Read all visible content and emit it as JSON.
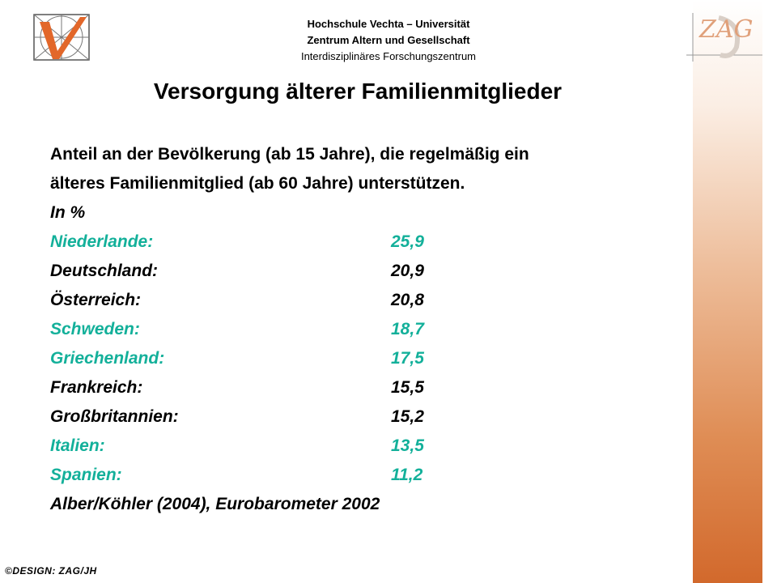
{
  "header": {
    "line1": "Hochschule Vechta – Universität",
    "line2": "Zentrum Altern und Gesellschaft",
    "line3": "Interdisziplinäres  Forschungszentrum"
  },
  "logo_right_text": "ZAG",
  "title": "Versorgung älterer Familienmitglieder",
  "intro": {
    "line1": "Anteil an der Bevölkerung (ab 15 Jahre), die regelmäßig ein",
    "line2": "älteres Familienmitglied (ab 60 Jahre) unterstützen."
  },
  "unit": "In %",
  "rows": [
    {
      "country": "Niederlande:",
      "value": "25,9",
      "highlight": true
    },
    {
      "country": "Deutschland:",
      "value": "20,9",
      "highlight": false
    },
    {
      "country": "Österreich:",
      "value": "20,8",
      "highlight": false
    },
    {
      "country": "Schweden:",
      "value": "18,7",
      "highlight": true
    },
    {
      "country": "Griechenland:",
      "value": "17,5",
      "highlight": true
    },
    {
      "country": "Frankreich:",
      "value": "15,5",
      "highlight": false
    },
    {
      "country": "Großbritannien:",
      "value": "15,2",
      "highlight": false
    },
    {
      "country": "Italien:",
      "value": "13,5",
      "highlight": true
    },
    {
      "country": "Spanien:",
      "value": "11,2",
      "highlight": true
    }
  ],
  "source": "Alber/Köhler (2004), Eurobarometer 2002",
  "footer": "©DESIGN: ZAG/JH",
  "colors": {
    "highlight": "#13b09a",
    "accent": "#e0783c"
  }
}
